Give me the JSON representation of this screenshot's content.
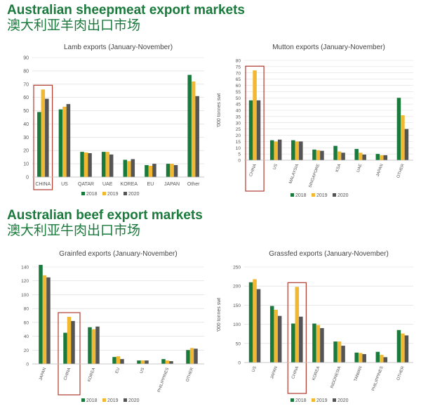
{
  "headings": {
    "sheep_en": "Australian sheepmeat export markets",
    "sheep_zh": "澳大利亚羊肉出口市场",
    "beef_en": "Australian beef export markets",
    "beef_zh": "澳大利亚牛肉出口市场"
  },
  "colors": {
    "2018": "#1a7a3c",
    "2019": "#f2b830",
    "2020": "#555555",
    "highlight": "#b03a2e",
    "grid": "#d9d9d9"
  },
  "chart_data": [
    {
      "type": "bar",
      "title": "Lamb exports (January-November)",
      "ylabel": "",
      "ylim": [
        0,
        90
      ],
      "yticks": [
        0,
        10,
        20,
        30,
        40,
        50,
        60,
        70,
        80,
        90
      ],
      "x_rotated": false,
      "categories": [
        "CHINA",
        "US",
        "QATAR",
        "UAE",
        "KOREA",
        "EU",
        "JAPAN",
        "Other"
      ],
      "highlight": "CHINA",
      "series": [
        {
          "name": "2018",
          "values": [
            49,
            51,
            19,
            19,
            13,
            9,
            10,
            77
          ]
        },
        {
          "name": "2019",
          "values": [
            66,
            53,
            18.5,
            19,
            12,
            8.5,
            10,
            72
          ]
        },
        {
          "name": "2020",
          "values": [
            59,
            55,
            18,
            17,
            13.5,
            10,
            9,
            61
          ]
        }
      ],
      "grid": true,
      "legend": "bottom"
    },
    {
      "type": "bar",
      "title": "Mutton exports (January-November)",
      "ylabel": "'000 tonnes swt",
      "ylim": [
        0,
        80
      ],
      "yticks": [
        0,
        5,
        10,
        15,
        20,
        25,
        30,
        35,
        40,
        45,
        50,
        55,
        60,
        65,
        70,
        75,
        80
      ],
      "x_rotated": true,
      "categories": [
        "CHINA",
        "US",
        "MALAYSIA",
        "SINGAPORE",
        "KSA",
        "UAE",
        "JAPAN",
        "OTHER"
      ],
      "highlight": "CHINA",
      "series": [
        {
          "name": "2018",
          "values": [
            48,
            16,
            16,
            8.5,
            11.5,
            9,
            5,
            50
          ]
        },
        {
          "name": "2019",
          "values": [
            72,
            15,
            15,
            8,
            7,
            6,
            4,
            36
          ]
        },
        {
          "name": "2020",
          "values": [
            48,
            16.5,
            15,
            7.5,
            6,
            4.5,
            4,
            25
          ]
        }
      ],
      "grid": true,
      "legend": "bottom"
    },
    {
      "type": "bar",
      "title": "Grainfed exports (January-November)",
      "ylabel": "",
      "ylim": [
        0,
        140
      ],
      "yticks": [
        0,
        20,
        40,
        60,
        80,
        100,
        120,
        140
      ],
      "x_rotated": true,
      "categories": [
        "JAPAN",
        "CHINA",
        "KOREA",
        "EU",
        "US",
        "PHILIPPINES",
        "OTHER"
      ],
      "highlight": "CHINA",
      "series": [
        {
          "name": "2018",
          "values": [
            143,
            45,
            53,
            10,
            5,
            7,
            20
          ]
        },
        {
          "name": "2019",
          "values": [
            128,
            68,
            50,
            11,
            5,
            5,
            23
          ]
        },
        {
          "name": "2020",
          "values": [
            125,
            62,
            54,
            7,
            5,
            4,
            22
          ]
        }
      ],
      "grid": true,
      "legend": "bottom"
    },
    {
      "type": "bar",
      "title": "Grassfed exports (January-November)",
      "ylabel": "'000 tonnes swt",
      "ylim": [
        0,
        250
      ],
      "yticks": [
        0,
        50,
        100,
        150,
        200,
        250
      ],
      "x_rotated": true,
      "categories": [
        "US",
        "JAPAN",
        "CHINA",
        "KOREA",
        "INDONESIA",
        "TAIWAN",
        "PHILIPPINES",
        "OTHER"
      ],
      "highlight": "CHINA",
      "series": [
        {
          "name": "2018",
          "values": [
            210,
            148,
            102,
            102,
            55,
            26,
            28,
            85
          ]
        },
        {
          "name": "2019",
          "values": [
            218,
            138,
            198,
            98,
            55,
            25,
            20,
            76
          ]
        },
        {
          "name": "2020",
          "values": [
            192,
            122,
            120,
            90,
            44,
            22,
            14,
            71
          ]
        }
      ],
      "grid": true,
      "legend": "bottom"
    }
  ]
}
